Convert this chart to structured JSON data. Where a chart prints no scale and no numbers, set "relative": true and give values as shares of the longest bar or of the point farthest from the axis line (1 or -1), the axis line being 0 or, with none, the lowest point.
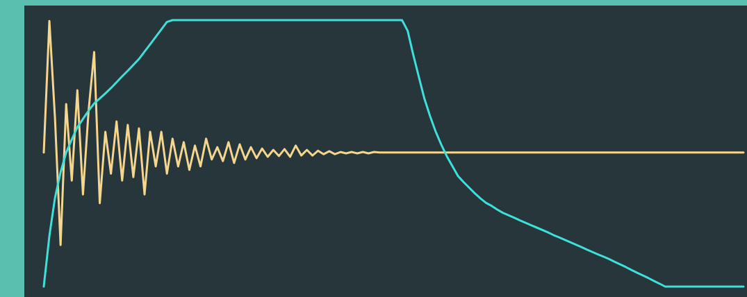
{
  "chart_data": {
    "type": "line",
    "relative": true,
    "marker": "none",
    "line_style": "solid",
    "categories": [
      null,
      null,
      null,
      null,
      null,
      null,
      null,
      null,
      null,
      null,
      null,
      null,
      null,
      null,
      null,
      null,
      null,
      null,
      null,
      null,
      null,
      null,
      null,
      null,
      null,
      null,
      null,
      null,
      null,
      null,
      null,
      null,
      null,
      null,
      null,
      null,
      null,
      null,
      null,
      null,
      null,
      null,
      null,
      null,
      null,
      null,
      null,
      null,
      null,
      null,
      null,
      null,
      null,
      null,
      null,
      null,
      null,
      null,
      null,
      null,
      null,
      null,
      null,
      null,
      null,
      null,
      null,
      null,
      null,
      null,
      null,
      null,
      null,
      null,
      null,
      null,
      null,
      null,
      null,
      null,
      null,
      null,
      null,
      null,
      null,
      null,
      null,
      null,
      null,
      null,
      null,
      null,
      null,
      null,
      null,
      null,
      null,
      null,
      null,
      null,
      null,
      null,
      null,
      null,
      null,
      null,
      null,
      null,
      null,
      null,
      null,
      null,
      null,
      null,
      null,
      null,
      null,
      null,
      null,
      null,
      null,
      null,
      null,
      null,
      null,
      null
    ],
    "series": [
      {
        "color": "#f5d68f",
        "values": [
          0.503,
          0.997,
          0.633,
          0.156,
          0.685,
          0.398,
          0.737,
          0.346,
          0.659,
          0.88,
          0.313,
          0.581,
          0.424,
          0.62,
          0.398,
          0.607,
          0.411,
          0.594,
          0.346,
          0.581,
          0.451,
          0.581,
          0.424,
          0.555,
          0.451,
          0.542,
          0.438,
          0.529,
          0.451,
          0.555,
          0.477,
          0.523,
          0.471,
          0.542,
          0.464,
          0.534,
          0.477,
          0.523,
          0.482,
          0.518,
          0.487,
          0.513,
          0.49,
          0.516,
          0.487,
          0.529,
          0.492,
          0.513,
          0.492,
          0.51,
          0.497,
          0.508,
          0.497,
          0.505,
          0.5,
          0.505,
          0.5,
          0.505,
          0.5,
          0.505,
          0.503,
          0.503,
          0.503,
          0.503,
          0.503,
          0.503,
          0.503,
          0.503,
          0.503,
          0.503,
          0.503,
          0.503,
          0.503,
          0.503,
          0.503,
          0.503,
          0.503,
          0.503,
          0.503,
          0.503,
          0.503,
          0.503,
          0.503,
          0.503,
          0.503,
          0.503,
          0.503,
          0.503,
          0.503,
          0.503,
          0.503,
          0.503,
          0.503,
          0.503,
          0.503,
          0.503,
          0.503,
          0.503,
          0.503,
          0.503,
          0.503,
          0.503,
          0.503,
          0.503,
          0.503,
          0.503,
          0.503,
          0.503,
          0.503,
          0.503,
          0.503,
          0.503,
          0.503,
          0.503,
          0.503,
          0.503,
          0.503,
          0.503,
          0.503,
          0.503,
          0.503,
          0.503,
          0.503,
          0.503,
          0.503,
          0.503
        ]
      },
      {
        "color": "#3ee0dc",
        "values": [
          0,
          0.19,
          0.333,
          0.429,
          0.503,
          0.552,
          0.598,
          0.629,
          0.66,
          0.687,
          0.706,
          0.725,
          0.745,
          0.767,
          0.789,
          0.81,
          0.832,
          0.854,
          0.882,
          0.909,
          0.937,
          0.965,
          0.993,
          1,
          1,
          1,
          1,
          1,
          1,
          1,
          1,
          1,
          1,
          1,
          1,
          1,
          1,
          1,
          1,
          1,
          1,
          1,
          1,
          1,
          1,
          1,
          1,
          1,
          1,
          1,
          1,
          1,
          1,
          1,
          1,
          1,
          1,
          1,
          1,
          1,
          1,
          1,
          1,
          1,
          1,
          0.96,
          0.87,
          0.787,
          0.705,
          0.64,
          0.582,
          0.533,
          0.489,
          0.452,
          0.415,
          0.392,
          0.371,
          0.35,
          0.331,
          0.314,
          0.303,
          0.289,
          0.277,
          0.268,
          0.259,
          0.249,
          0.24,
          0.231,
          0.222,
          0.213,
          0.204,
          0.194,
          0.185,
          0.176,
          0.167,
          0.158,
          0.149,
          0.139,
          0.13,
          0.121,
          0.112,
          0.103,
          0.093,
          0.083,
          0.073,
          0.062,
          0.052,
          0.042,
          0.032,
          0.021,
          0.011,
          0,
          0,
          0,
          0,
          0,
          0,
          0,
          0,
          0,
          0,
          0,
          0,
          0,
          0,
          0
        ]
      }
    ]
  }
}
